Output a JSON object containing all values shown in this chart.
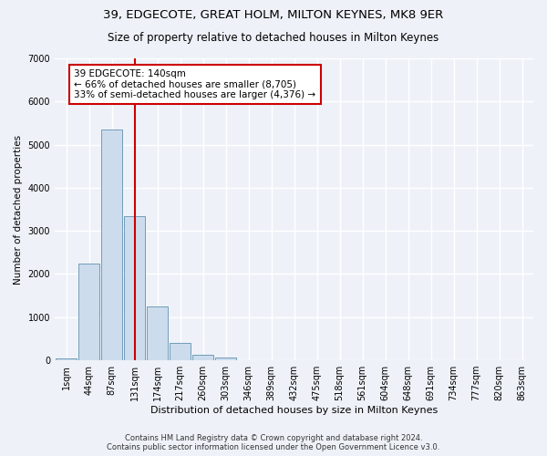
{
  "title": "39, EDGECOTE, GREAT HOLM, MILTON KEYNES, MK8 9ER",
  "subtitle": "Size of property relative to detached houses in Milton Keynes",
  "xlabel": "Distribution of detached houses by size in Milton Keynes",
  "ylabel": "Number of detached properties",
  "footer_line1": "Contains HM Land Registry data © Crown copyright and database right 2024.",
  "footer_line2": "Contains public sector information licensed under the Open Government Licence v3.0.",
  "bar_labels": [
    "1sqm",
    "44sqm",
    "87sqm",
    "131sqm",
    "174sqm",
    "217sqm",
    "260sqm",
    "303sqm",
    "346sqm",
    "389sqm",
    "432sqm",
    "475sqm",
    "518sqm",
    "561sqm",
    "604sqm",
    "648sqm",
    "691sqm",
    "734sqm",
    "777sqm",
    "820sqm",
    "863sqm"
  ],
  "bar_values": [
    50,
    2250,
    5350,
    3350,
    1250,
    400,
    120,
    60,
    0,
    0,
    0,
    0,
    0,
    0,
    0,
    0,
    0,
    0,
    0,
    0,
    0
  ],
  "bar_color": "#ccdcec",
  "bar_edgecolor": "#6090b0",
  "ylim": [
    0,
    7000
  ],
  "yticks": [
    0,
    1000,
    2000,
    3000,
    4000,
    5000,
    6000,
    7000
  ],
  "annotation_line1": "39 EDGECOTE: 140sqm",
  "annotation_line2": "← 66% of detached houses are smaller (8,705)",
  "annotation_line3": "33% of semi-detached houses are larger (4,376) →",
  "vline_color": "#cc0000",
  "annotation_box_edgecolor": "#cc0000",
  "background_color": "#eef2f8",
  "grid_color": "#ffffff",
  "title_fontsize": 9.5,
  "subtitle_fontsize": 8.5,
  "annotation_fontsize": 7.5,
  "xlabel_fontsize": 8,
  "ylabel_fontsize": 7.5,
  "tick_fontsize": 7,
  "footer_fontsize": 6
}
